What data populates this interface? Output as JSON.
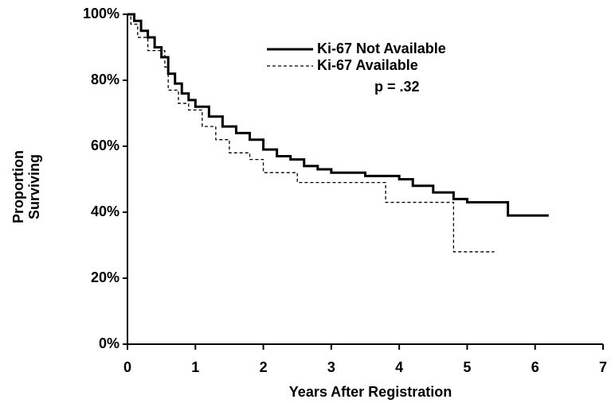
{
  "chart_data": {
    "type": "step",
    "xlabel": "Years After Registration",
    "ylabel": [
      "Proportion",
      "Surviving"
    ],
    "annotation": "p = .32",
    "xlim": [
      0,
      7
    ],
    "xticks": [
      0,
      1,
      2,
      3,
      4,
      5,
      6,
      7
    ],
    "ylim": [
      0,
      100
    ],
    "yticks": [
      {
        "value": 0,
        "label": "0%"
      },
      {
        "value": 20,
        "label": "20%"
      },
      {
        "value": 40,
        "label": "40%"
      },
      {
        "value": 60,
        "label": "60%"
      },
      {
        "value": 80,
        "label": "80%"
      },
      {
        "value": 100,
        "label": "100%"
      }
    ],
    "series": [
      {
        "name": "Ki-67 Not Available",
        "color": "#000000",
        "style": "solid",
        "x": [
          0,
          0.1,
          0.2,
          0.3,
          0.4,
          0.5,
          0.6,
          0.7,
          0.8,
          0.9,
          1.0,
          1.2,
          1.4,
          1.6,
          1.8,
          2.0,
          2.2,
          2.4,
          2.6,
          2.8,
          3.0,
          3.5,
          4.0,
          4.2,
          4.5,
          4.8,
          5.0,
          5.6,
          6.2
        ],
        "values": [
          100,
          98,
          95,
          93,
          90,
          87,
          82,
          79,
          76,
          74,
          72,
          69,
          66,
          64,
          62,
          59,
          57,
          56,
          54,
          53,
          52,
          51,
          50,
          48,
          46,
          44,
          43,
          39,
          39
        ]
      },
      {
        "name": "Ki-67 Available",
        "color": "#000000",
        "style": "dashed",
        "x": [
          0,
          0.05,
          0.15,
          0.3,
          0.55,
          0.6,
          0.75,
          0.9,
          1.1,
          1.3,
          1.5,
          1.8,
          2.0,
          2.5,
          3.8,
          4.8,
          5.4
        ],
        "values": [
          100,
          97,
          93,
          89,
          84,
          77,
          73,
          71,
          66,
          62,
          58,
          56,
          52,
          49,
          43,
          28,
          28
        ]
      }
    ]
  }
}
